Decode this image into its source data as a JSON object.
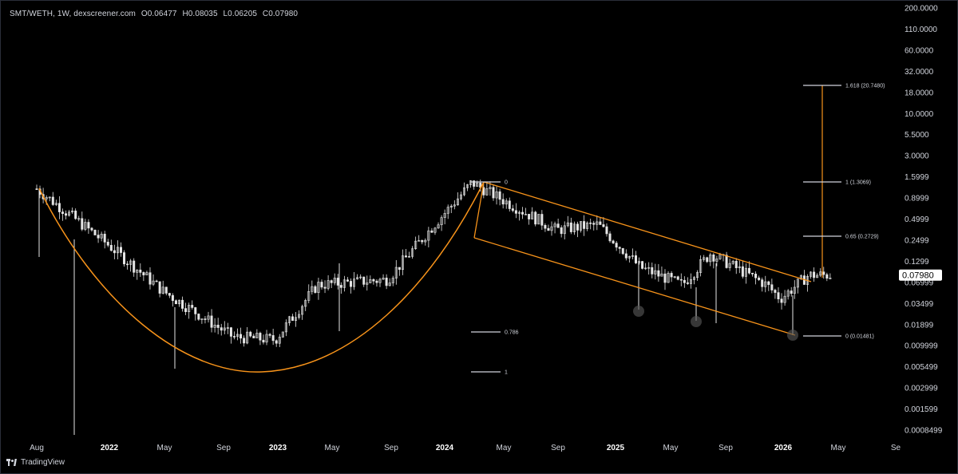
{
  "header": {
    "symbol": "SMT/WETH, 1W, dexscreener.com",
    "open": "O0.06477",
    "high": "H0.08035",
    "low": "L0.06205",
    "close": "C0.07980"
  },
  "footer": {
    "brand": "TradingView"
  },
  "colors": {
    "background": "#000000",
    "candle": "#e6e6e6",
    "drawing": "#f7931a",
    "text": "#d1d4dc",
    "last_price_bg": "#ffffff"
  },
  "chart_data": {
    "type": "candlestick",
    "scale": "log",
    "y_ticks": [
      "200.0000",
      "110.0000",
      "60.0000",
      "32.0000",
      "18.0000",
      "10.0000",
      "5.5000",
      "3.0000",
      "1.5999",
      "0.8999",
      "0.4999",
      "0.2499",
      "0.1299",
      "0.06999",
      "0.03499",
      "0.01899",
      "0.009999",
      "0.005499",
      "0.002999",
      "0.001599",
      "0.0008499"
    ],
    "last_price": "0.07980",
    "x_ticks": [
      {
        "label": "Aug",
        "bold": false
      },
      {
        "label": "2022",
        "bold": true
      },
      {
        "label": "May",
        "bold": false
      },
      {
        "label": "Sep",
        "bold": false
      },
      {
        "label": "2023",
        "bold": true
      },
      {
        "label": "May",
        "bold": false
      },
      {
        "label": "Sep",
        "bold": false
      },
      {
        "label": "2024",
        "bold": true
      },
      {
        "label": "May",
        "bold": false
      },
      {
        "label": "Sep",
        "bold": false
      },
      {
        "label": "2025",
        "bold": true
      },
      {
        "label": "May",
        "bold": false
      },
      {
        "label": "Sep",
        "bold": false
      },
      {
        "label": "2026",
        "bold": true
      },
      {
        "label": "May",
        "bold": false
      },
      {
        "label": "Se",
        "bold": false
      }
    ],
    "price_anchors": [
      {
        "date": "2021-08",
        "close": 1.0
      },
      {
        "date": "2022-01",
        "close": 0.2
      },
      {
        "date": "2022-05",
        "close": 0.05
      },
      {
        "date": "2022-10",
        "close": 0.013
      },
      {
        "date": "2023-01",
        "close": 0.012
      },
      {
        "date": "2023-04",
        "close": 0.06
      },
      {
        "date": "2023-09",
        "close": 0.07
      },
      {
        "date": "2023-12",
        "close": 0.3
      },
      {
        "date": "2024-03",
        "close": 1.2
      },
      {
        "date": "2024-09",
        "close": 0.3
      },
      {
        "date": "2024-12",
        "close": 0.35
      },
      {
        "date": "2025-03",
        "close": 0.1
      },
      {
        "date": "2025-06",
        "close": 0.06
      },
      {
        "date": "2025-08",
        "close": 0.15
      },
      {
        "date": "2025-12",
        "close": 0.06
      },
      {
        "date": "2026-01",
        "close": 0.04
      },
      {
        "date": "2026-03",
        "close": 0.0798
      }
    ],
    "fib_labels": {
      "top_zero": "0",
      "level_786": "0.786",
      "level_one": "1",
      "ext_1618": "1.618 (20.7480)",
      "ext_1": "1 (1.3069)",
      "ext_065": "0.65 (0.2729)",
      "ext_0": "0 (0.01481)"
    }
  }
}
